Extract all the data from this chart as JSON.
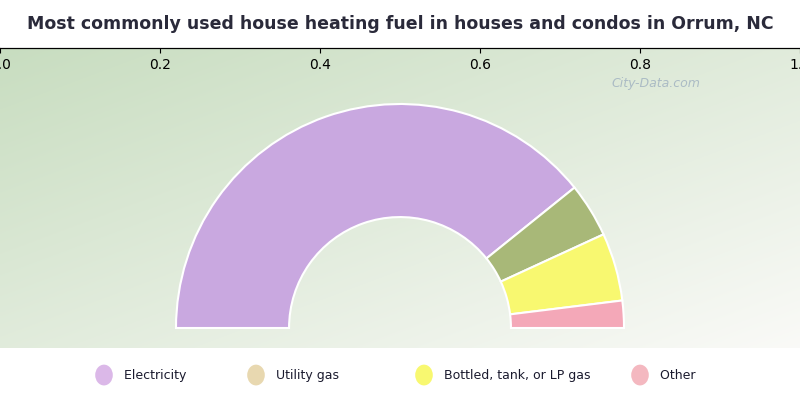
{
  "title": "Most commonly used house heating fuel in houses and condos in Orrum, NC",
  "title_color": "#2a2a3a",
  "title_bg_color": "#ffffff",
  "cyan_color": "#00efef",
  "slices": [
    {
      "label": "Electricity",
      "value": 80,
      "color": "#c9a8e0"
    },
    {
      "label": "Utility gas",
      "value": 8,
      "color": "#a8b878"
    },
    {
      "label": "Bottled, tank, or LP gas",
      "value": 10,
      "color": "#f8f870"
    },
    {
      "label": "Other",
      "value": 4,
      "color": "#f4a8b8"
    }
  ],
  "legend_items": [
    {
      "label": "Electricity",
      "color": "#dbb8e8"
    },
    {
      "label": "Utility gas",
      "color": "#e8d8b0"
    },
    {
      "label": "Bottled, tank, or LP gas",
      "color": "#f8f870"
    },
    {
      "label": "Other",
      "color": "#f4b8c0"
    }
  ],
  "outer_r": 1.05,
  "inner_r": 0.52,
  "watermark": "City-Data.com",
  "bg_green": "#c8ddc0",
  "bg_white": "#f8f8f8"
}
